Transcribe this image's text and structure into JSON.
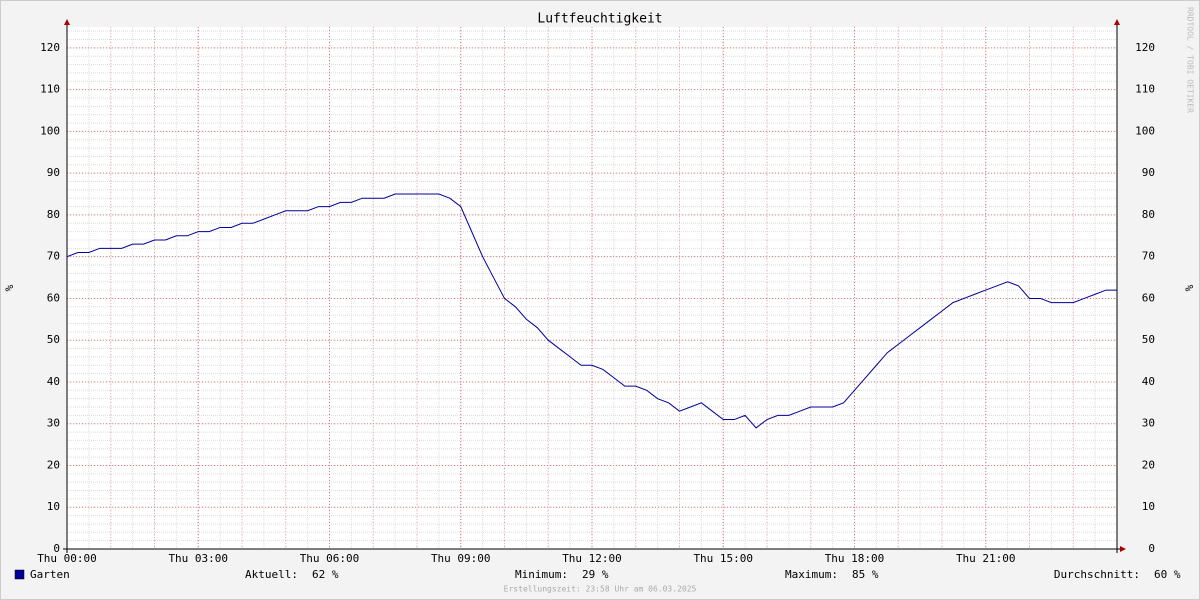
{
  "chart_data": {
    "type": "line",
    "title": "Luftfeuchtigkeit",
    "y_label": "%",
    "watermark": "RRDTOOL / TOBI OETIKER",
    "footer": "Erstellungszeit: 23:58 Uhr am 06.03.2025",
    "xlim": [
      0,
      24
    ],
    "xticks": [
      {
        "value": 0,
        "label": "Thu 00:00"
      },
      {
        "value": 3,
        "label": "Thu 03:00"
      },
      {
        "value": 6,
        "label": "Thu 06:00"
      },
      {
        "value": 9,
        "label": "Thu 09:00"
      },
      {
        "value": 12,
        "label": "Thu 12:00"
      },
      {
        "value": 15,
        "label": "Thu 15:00"
      },
      {
        "value": 18,
        "label": "Thu 18:00"
      },
      {
        "value": 21,
        "label": "Thu 21:00"
      }
    ],
    "ylim": [
      0,
      125
    ],
    "yticks": [
      0,
      10,
      20,
      30,
      40,
      50,
      60,
      70,
      80,
      90,
      100,
      110,
      120
    ],
    "grid": true,
    "x": [
      0,
      0.25,
      0.5,
      0.75,
      1,
      1.25,
      1.5,
      1.75,
      2,
      2.25,
      2.5,
      2.75,
      3,
      3.25,
      3.5,
      3.75,
      4,
      4.25,
      4.5,
      4.75,
      5,
      5.25,
      5.5,
      5.75,
      6,
      6.25,
      6.5,
      6.75,
      7,
      7.25,
      7.5,
      7.75,
      8,
      8.25,
      8.5,
      8.75,
      9,
      9.25,
      9.5,
      9.75,
      10,
      10.25,
      10.5,
      10.75,
      11,
      11.25,
      11.5,
      11.75,
      12,
      12.25,
      12.5,
      12.75,
      13,
      13.25,
      13.5,
      13.75,
      14,
      14.25,
      14.5,
      14.75,
      15,
      15.25,
      15.5,
      15.75,
      16,
      16.25,
      16.5,
      16.75,
      17,
      17.25,
      17.5,
      17.75,
      18,
      18.25,
      18.5,
      18.75,
      19,
      19.25,
      19.5,
      19.75,
      20,
      20.25,
      20.5,
      20.75,
      21,
      21.25,
      21.5,
      21.75,
      22,
      22.25,
      22.5,
      22.75,
      23,
      23.25,
      23.5,
      23.75,
      24
    ],
    "series": [
      {
        "name": "Garten",
        "color": "#000099",
        "values": [
          70,
          71,
          71,
          72,
          72,
          72,
          73,
          73,
          74,
          74,
          75,
          75,
          76,
          76,
          77,
          77,
          78,
          78,
          79,
          80,
          81,
          81,
          81,
          82,
          82,
          83,
          83,
          84,
          84,
          84,
          85,
          85,
          85,
          85,
          85,
          84,
          82,
          76,
          70,
          65,
          60,
          58,
          55,
          53,
          50,
          48,
          46,
          44,
          44,
          43,
          41,
          39,
          39,
          38,
          36,
          35,
          33,
          34,
          35,
          33,
          31,
          31,
          32,
          29,
          31,
          32,
          32,
          33,
          34,
          34,
          34,
          35,
          38,
          41,
          44,
          47,
          49,
          51,
          53,
          55,
          57,
          59,
          60,
          61,
          62,
          63,
          64,
          63,
          60,
          60,
          59,
          59,
          59,
          60,
          61,
          62,
          62
        ]
      }
    ],
    "stats": [
      {
        "label": "Aktuell:",
        "value": "62 %"
      },
      {
        "label": "Minimum:",
        "value": "29 %"
      },
      {
        "label": "Maximum:",
        "value": "85 %"
      },
      {
        "label": "Durchschnitt:",
        "value": "60 %"
      }
    ]
  }
}
